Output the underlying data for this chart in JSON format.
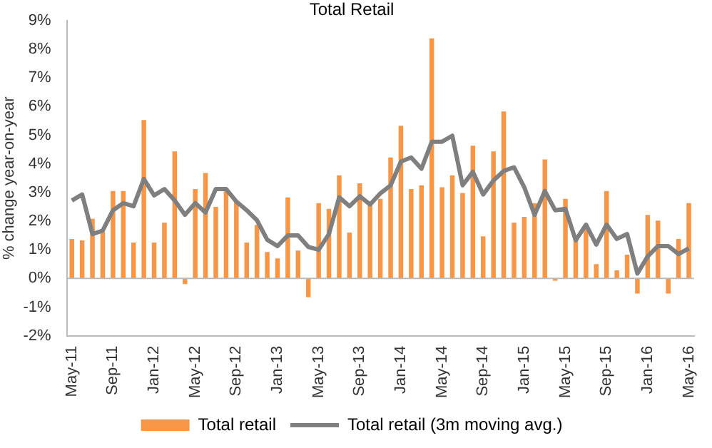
{
  "chart_data": {
    "type": "bar",
    "title": "Total Retail",
    "ylabel": "% change year-on-year",
    "categories": [
      "May-11",
      null,
      null,
      null,
      "Sep-11",
      null,
      null,
      null,
      "Jan-12",
      null,
      null,
      null,
      "May-12",
      null,
      null,
      null,
      "Sep-12",
      null,
      null,
      null,
      "Jan-13",
      null,
      null,
      null,
      "May-13",
      null,
      null,
      null,
      "Sep-13",
      null,
      null,
      null,
      "Jan-14",
      null,
      null,
      null,
      "May-14",
      null,
      null,
      null,
      "Sep-14",
      null,
      null,
      null,
      "Jan-15",
      null,
      null,
      null,
      "May-15",
      null,
      null,
      null,
      "Sep-15",
      null,
      null,
      null,
      "Jan-16",
      null,
      null,
      null,
      "May-16"
    ],
    "series": [
      {
        "name": "Total retail",
        "color": "#f79646",
        "values": [
          1.38,
          1.33,
          2.08,
          1.63,
          3.05,
          3.05,
          1.25,
          5.53,
          1.25,
          1.95,
          4.43,
          -0.2,
          3.12,
          3.68,
          2.5,
          3.05,
          2.67,
          1.25,
          1.87,
          0.92,
          0.7,
          2.83,
          0.97,
          -0.65,
          2.63,
          2.43,
          3.6,
          1.6,
          3.32,
          2.55,
          2.78,
          4.22,
          5.33,
          3.12,
          3.25,
          8.38,
          3.18,
          3.6,
          2.98,
          4.63,
          1.47,
          4.43,
          5.83,
          1.95,
          2.15,
          2.63,
          4.15,
          -0.08,
          2.78,
          1.38,
          1.8,
          0.5,
          3.05,
          0.28,
          0.83,
          -0.53,
          2.22,
          2.02,
          -0.53,
          1.38,
          2.63
        ]
      },
      {
        "name": "Total retail (3m moving avg.)",
        "type": "line",
        "color": "#7f7f7f",
        "values": [
          2.72,
          2.93,
          1.55,
          1.67,
          2.38,
          2.63,
          2.52,
          3.47,
          2.9,
          3.12,
          2.72,
          2.22,
          2.63,
          2.3,
          3.12,
          3.12,
          2.68,
          2.38,
          2.03,
          1.35,
          1.13,
          1.5,
          1.5,
          1.1,
          1.0,
          1.55,
          2.83,
          2.52,
          2.87,
          2.58,
          2.97,
          3.25,
          4.08,
          4.22,
          3.83,
          4.77,
          4.77,
          4.98,
          3.25,
          3.72,
          2.93,
          3.42,
          3.75,
          3.88,
          3.18,
          2.22,
          3.05,
          2.38,
          2.43,
          1.33,
          1.88,
          1.18,
          1.88,
          1.38,
          1.55,
          0.17,
          0.77,
          1.13,
          1.13,
          0.85,
          1.05
        ]
      }
    ],
    "ylim": [
      -2,
      9
    ],
    "yticks": [
      {
        "value": -2,
        "label": "-2%"
      },
      {
        "value": -1,
        "label": "-1%"
      },
      {
        "value": 0,
        "label": "0%"
      },
      {
        "value": 1,
        "label": "1%"
      },
      {
        "value": 2,
        "label": "2%"
      },
      {
        "value": 3,
        "label": "3%"
      },
      {
        "value": 4,
        "label": "4%"
      },
      {
        "value": 5,
        "label": "5%"
      },
      {
        "value": 6,
        "label": "6%"
      },
      {
        "value": 7,
        "label": "7%"
      },
      {
        "value": 8,
        "label": "8%"
      },
      {
        "value": 9,
        "label": "9%"
      }
    ],
    "grid": false,
    "ref_lines": [
      {
        "axis": "y",
        "value": 0,
        "color": "#bbbbbb"
      }
    ],
    "legend": "bottom",
    "marker": "none",
    "line_style": "solid"
  }
}
